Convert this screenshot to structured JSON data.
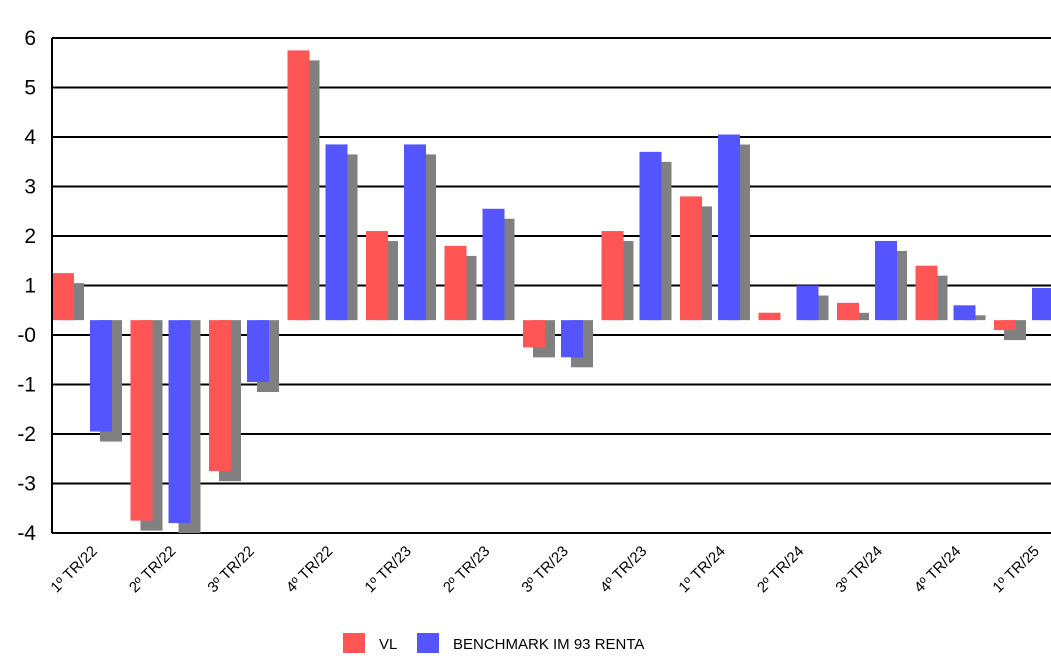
{
  "chart_data": {
    "type": "bar",
    "title": "",
    "xlabel": "",
    "ylabel": "",
    "categories": [
      "1º TR/22",
      "2º TR/22",
      "3º TR/22",
      "4º TR/22",
      "1º TR/23",
      "2º TR/23",
      "3º TR/23",
      "4º TR/23",
      "1º TR/24",
      "2º TR/24",
      "3º TR/24",
      "4º TR/24",
      "1º TR/25"
    ],
    "series": [
      {
        "name": "VL",
        "color": "#ff5555",
        "values": [
          1.25,
          -3.75,
          -2.75,
          5.75,
          2.1,
          1.8,
          -0.25,
          2.1,
          2.8,
          0.45,
          0.65,
          1.4,
          0.1
        ]
      },
      {
        "name": "BENCHMARK IM 93 RENTA",
        "color": "#5555ff",
        "values": [
          -1.95,
          -3.8,
          -0.95,
          3.85,
          3.85,
          2.55,
          -0.45,
          3.7,
          4.05,
          1.0,
          1.9,
          0.6,
          0.95
        ]
      }
    ],
    "yticks": [
      6,
      5,
      4,
      3,
      2,
      1,
      0,
      -1,
      -2,
      -3,
      -4
    ],
    "ytick_labels": [
      "6",
      "5",
      "4",
      "3",
      "2",
      "1",
      "-0",
      "-1",
      "-2",
      "-3",
      "-4"
    ],
    "ylim": [
      -4,
      6
    ],
    "baseline": 0.3,
    "shadow_color": "#808080",
    "grid": true,
    "legend_position": "bottom"
  }
}
